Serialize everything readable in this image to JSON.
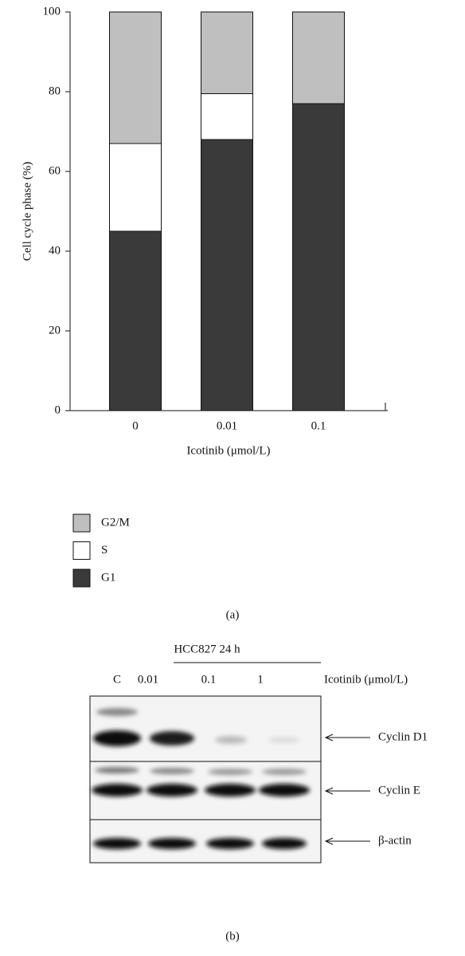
{
  "chart_data": {
    "type": "stacked_bar",
    "y_label": "Cell cycle phase (%)",
    "x_label": "Icotinib (μmol/L)",
    "categories": [
      "0",
      "0.01",
      "0.1"
    ],
    "series": [
      {
        "name": "G1",
        "color": "#3a3a3a",
        "values": [
          45,
          68,
          77
        ]
      },
      {
        "name": "S",
        "color": "#ffffff",
        "values": [
          22,
          11.5,
          0
        ]
      },
      {
        "name": "G2/M",
        "color": "#bfbfbf",
        "values": [
          33,
          20.5,
          23
        ]
      }
    ],
    "ylim": [
      0,
      100
    ],
    "yticks": [
      0,
      20,
      40,
      60,
      80,
      100
    ],
    "grid": false
  },
  "panel_labels": [
    "(a)",
    "(b)"
  ],
  "blot": {
    "title": "HCC827 24 h",
    "lanes": [
      "C",
      "0.01",
      "0.1",
      "1"
    ],
    "treatment": "Icotinib (μmol/L)",
    "bands": [
      "Cyclin D1",
      "Cyclin E",
      "β-actin"
    ]
  }
}
